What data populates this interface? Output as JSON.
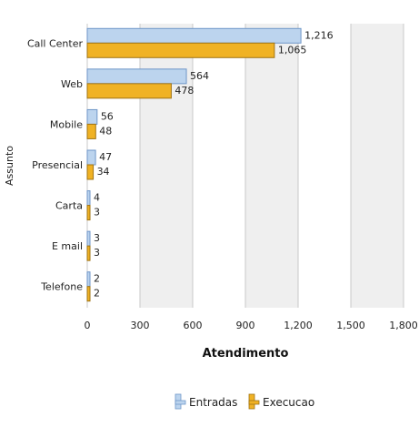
{
  "chart_data": {
    "type": "bar",
    "orientation": "horizontal",
    "categories": [
      "Call Center",
      "Web",
      "Mobile",
      "Presencial",
      "Carta",
      "E mail",
      "Telefone"
    ],
    "series": [
      {
        "name": "Entradas",
        "values": [
          1216,
          564,
          56,
          47,
          4,
          3,
          2
        ],
        "value_labels": [
          "1,216",
          "564",
          "56",
          "47",
          "4",
          "3",
          "2"
        ]
      },
      {
        "name": "Execucao",
        "values": [
          1065,
          478,
          48,
          34,
          3,
          3,
          2
        ],
        "value_labels": [
          "1,065",
          "478",
          "48",
          "34",
          "3",
          "3",
          "2"
        ]
      }
    ],
    "xlabel": "Atendimento",
    "ylabel": "Assunto",
    "xlim": [
      0,
      1800
    ],
    "xticks": [
      "0",
      "300",
      "600",
      "900",
      "1,200",
      "1,500",
      "1,800"
    ],
    "grid": "vertical",
    "legend_position": "bottom"
  },
  "colors": {
    "entradas_fill": "#bcd4ee",
    "entradas_stroke": "#6f96c8",
    "execucao_fill": "#f0b224",
    "execucao_stroke": "#a07415",
    "band_light": "#ffffff",
    "band_dark": "#efefef",
    "grid": "#c8c8c8"
  }
}
